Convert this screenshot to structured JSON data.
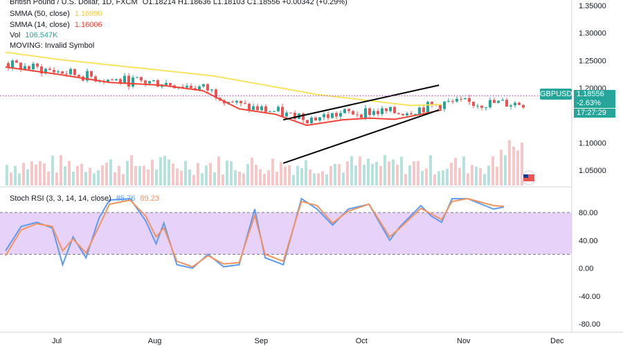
{
  "header": {
    "title": "British Pound / U.S. Dollar, 1D, FXCM",
    "ohlc": "O1.18214  H1.18636  L1.18103  C1.18556  +0.00342 (+0.29%)"
  },
  "indicators": {
    "sma50": {
      "label": "SMMA (50, close)",
      "value": "1.16990",
      "color": "#f2c94c"
    },
    "sma14": {
      "label": "SMMA (14, close)",
      "value": "1.16006",
      "color": "#f44336"
    },
    "vol": {
      "label": "Vol",
      "value": "106.547K"
    },
    "moving": {
      "label": "MOVING: Invalid Symbol"
    },
    "stoch": {
      "label": "Stoch RSI (3, 3, 14, 14, close)",
      "k": "85.76",
      "d": "89.23",
      "k_color": "#5b9bf5",
      "d_color": "#f5925b"
    }
  },
  "price_tags": {
    "symbol": "GBPUSD",
    "price": "1.18556",
    "change": "-2.63%",
    "countdown": "17:27:29"
  },
  "chart_data": {
    "type": "candlestick",
    "x_labels": [
      "Jul",
      "Aug",
      "Sep",
      "Oct",
      "Nov",
      "Dec"
    ],
    "price_ticks": [
      "1.35000",
      "1.30000",
      "1.25000",
      "1.20000",
      "1.10000",
      "1.05000"
    ],
    "stoch_ticks": [
      "80.00",
      "40.00",
      "0.00",
      "-40.00",
      "-80.00"
    ],
    "price_range": [
      1.02,
      1.36
    ],
    "stoch_range": [
      -90,
      115
    ],
    "stoch_band": [
      20,
      80
    ],
    "channel_upper": [
      [
        0.535,
        1.142
      ],
      [
        0.835,
        1.205
      ]
    ],
    "channel_lower": [
      [
        0.535,
        1.063
      ],
      [
        0.835,
        1.16
      ]
    ],
    "sma50": [
      [
        0.0,
        1.265
      ],
      [
        0.1,
        1.252
      ],
      [
        0.2,
        1.242
      ],
      [
        0.3,
        1.232
      ],
      [
        0.4,
        1.222
      ],
      [
        0.5,
        1.205
      ],
      [
        0.6,
        1.188
      ],
      [
        0.7,
        1.177
      ],
      [
        0.78,
        1.168
      ],
      [
        0.84,
        1.17
      ]
    ],
    "sma14": [
      [
        0.0,
        1.238
      ],
      [
        0.1,
        1.225
      ],
      [
        0.2,
        1.21
      ],
      [
        0.3,
        1.205
      ],
      [
        0.38,
        1.195
      ],
      [
        0.45,
        1.162
      ],
      [
        0.52,
        1.152
      ],
      [
        0.58,
        1.132
      ],
      [
        0.65,
        1.142
      ],
      [
        0.7,
        1.145
      ],
      [
        0.75,
        1.143
      ],
      [
        0.8,
        1.152
      ],
      [
        0.84,
        1.16
      ]
    ],
    "stoch_k": [
      [
        0.0,
        25
      ],
      [
        0.03,
        60
      ],
      [
        0.06,
        66
      ],
      [
        0.09,
        58
      ],
      [
        0.11,
        5
      ],
      [
        0.13,
        45
      ],
      [
        0.155,
        15
      ],
      [
        0.18,
        72
      ],
      [
        0.2,
        98
      ],
      [
        0.24,
        100
      ],
      [
        0.27,
        68
      ],
      [
        0.29,
        35
      ],
      [
        0.305,
        65
      ],
      [
        0.33,
        5
      ],
      [
        0.36,
        0
      ],
      [
        0.39,
        20
      ],
      [
        0.42,
        2
      ],
      [
        0.45,
        5
      ],
      [
        0.48,
        85
      ],
      [
        0.5,
        15
      ],
      [
        0.535,
        5
      ],
      [
        0.57,
        100
      ],
      [
        0.6,
        85
      ],
      [
        0.63,
        62
      ],
      [
        0.66,
        85
      ],
      [
        0.7,
        92
      ],
      [
        0.74,
        40
      ],
      [
        0.76,
        60
      ],
      [
        0.8,
        90
      ],
      [
        0.82,
        75
      ],
      [
        0.84,
        66
      ],
      [
        0.86,
        100
      ],
      [
        0.89,
        100
      ],
      [
        0.94,
        85
      ],
      [
        0.96,
        88
      ]
    ],
    "stoch_d": [
      [
        0.0,
        18
      ],
      [
        0.03,
        55
      ],
      [
        0.06,
        64
      ],
      [
        0.09,
        60
      ],
      [
        0.11,
        25
      ],
      [
        0.13,
        42
      ],
      [
        0.155,
        22
      ],
      [
        0.18,
        60
      ],
      [
        0.2,
        92
      ],
      [
        0.24,
        98
      ],
      [
        0.27,
        75
      ],
      [
        0.29,
        45
      ],
      [
        0.305,
        58
      ],
      [
        0.33,
        10
      ],
      [
        0.36,
        2
      ],
      [
        0.39,
        18
      ],
      [
        0.42,
        6
      ],
      [
        0.45,
        8
      ],
      [
        0.48,
        76
      ],
      [
        0.5,
        20
      ],
      [
        0.535,
        10
      ],
      [
        0.57,
        96
      ],
      [
        0.6,
        90
      ],
      [
        0.63,
        65
      ],
      [
        0.66,
        82
      ],
      [
        0.7,
        92
      ],
      [
        0.74,
        45
      ],
      [
        0.76,
        58
      ],
      [
        0.8,
        86
      ],
      [
        0.82,
        78
      ],
      [
        0.84,
        70
      ],
      [
        0.86,
        96
      ],
      [
        0.89,
        100
      ],
      [
        0.94,
        90
      ],
      [
        0.96,
        89
      ]
    ]
  }
}
